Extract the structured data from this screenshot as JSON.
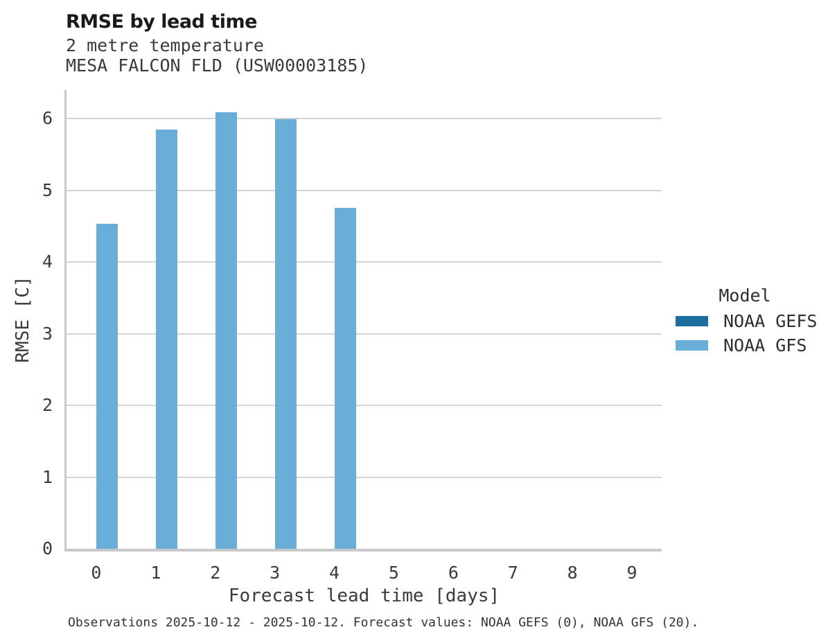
{
  "header": {
    "title": "RMSE by lead time",
    "subtitle1": "2 metre temperature",
    "subtitle2": "MESA FALCON FLD (USW00003185)"
  },
  "legend": {
    "title": "Model",
    "items": [
      {
        "label": "NOAA GEFS",
        "color": "#1e6f9d"
      },
      {
        "label": "NOAA GFS",
        "color": "#69aed8"
      }
    ]
  },
  "footer": {
    "caption": "Observations 2025-10-12 - 2025-10-12. Forecast values: NOAA GEFS (0), NOAA GFS (20)."
  },
  "chart_data": {
    "type": "bar",
    "title": "RMSE by lead time",
    "subtitle": [
      "2 metre temperature",
      "MESA FALCON FLD (USW00003185)"
    ],
    "xlabel": "Forecast lead time [days]",
    "ylabel": "RMSE [C]",
    "categories": [
      "0",
      "1",
      "2",
      "3",
      "4",
      "5",
      "6",
      "7",
      "8",
      "9"
    ],
    "series": [
      {
        "name": "NOAA GEFS",
        "color": "#1e6f9d",
        "values": [
          null,
          null,
          null,
          null,
          null,
          null,
          null,
          null,
          null,
          null
        ]
      },
      {
        "name": "NOAA GFS",
        "color": "#69aed8",
        "values": [
          4.53,
          5.85,
          6.09,
          5.99,
          4.76,
          null,
          null,
          null,
          null,
          null
        ]
      }
    ],
    "ylim": [
      0,
      6.4
    ],
    "yticks": [
      0,
      1,
      2,
      3,
      4,
      5,
      6
    ],
    "grid": "horizontal",
    "legend_title": "Model",
    "legend_position": "right"
  },
  "colors": {
    "grid": "#d4d4d4",
    "spine": "#c9c9c9",
    "gefs": "#1e6f9d",
    "gfs": "#69aed8"
  }
}
